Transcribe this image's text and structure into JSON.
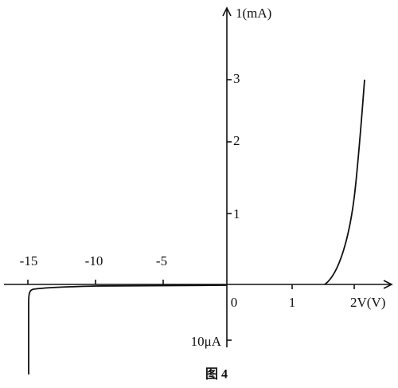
{
  "axes": {
    "y_label": "1(mA)",
    "x_label": "2V(V)",
    "y_ticks_positive": [
      "3",
      "2",
      "1"
    ],
    "x_ticks_negative": [
      "-15",
      "-10",
      "-5"
    ],
    "x_ticks_positive": [
      "0",
      "1"
    ],
    "y_tick_negative": "10μA"
  },
  "caption": "图 4"
}
